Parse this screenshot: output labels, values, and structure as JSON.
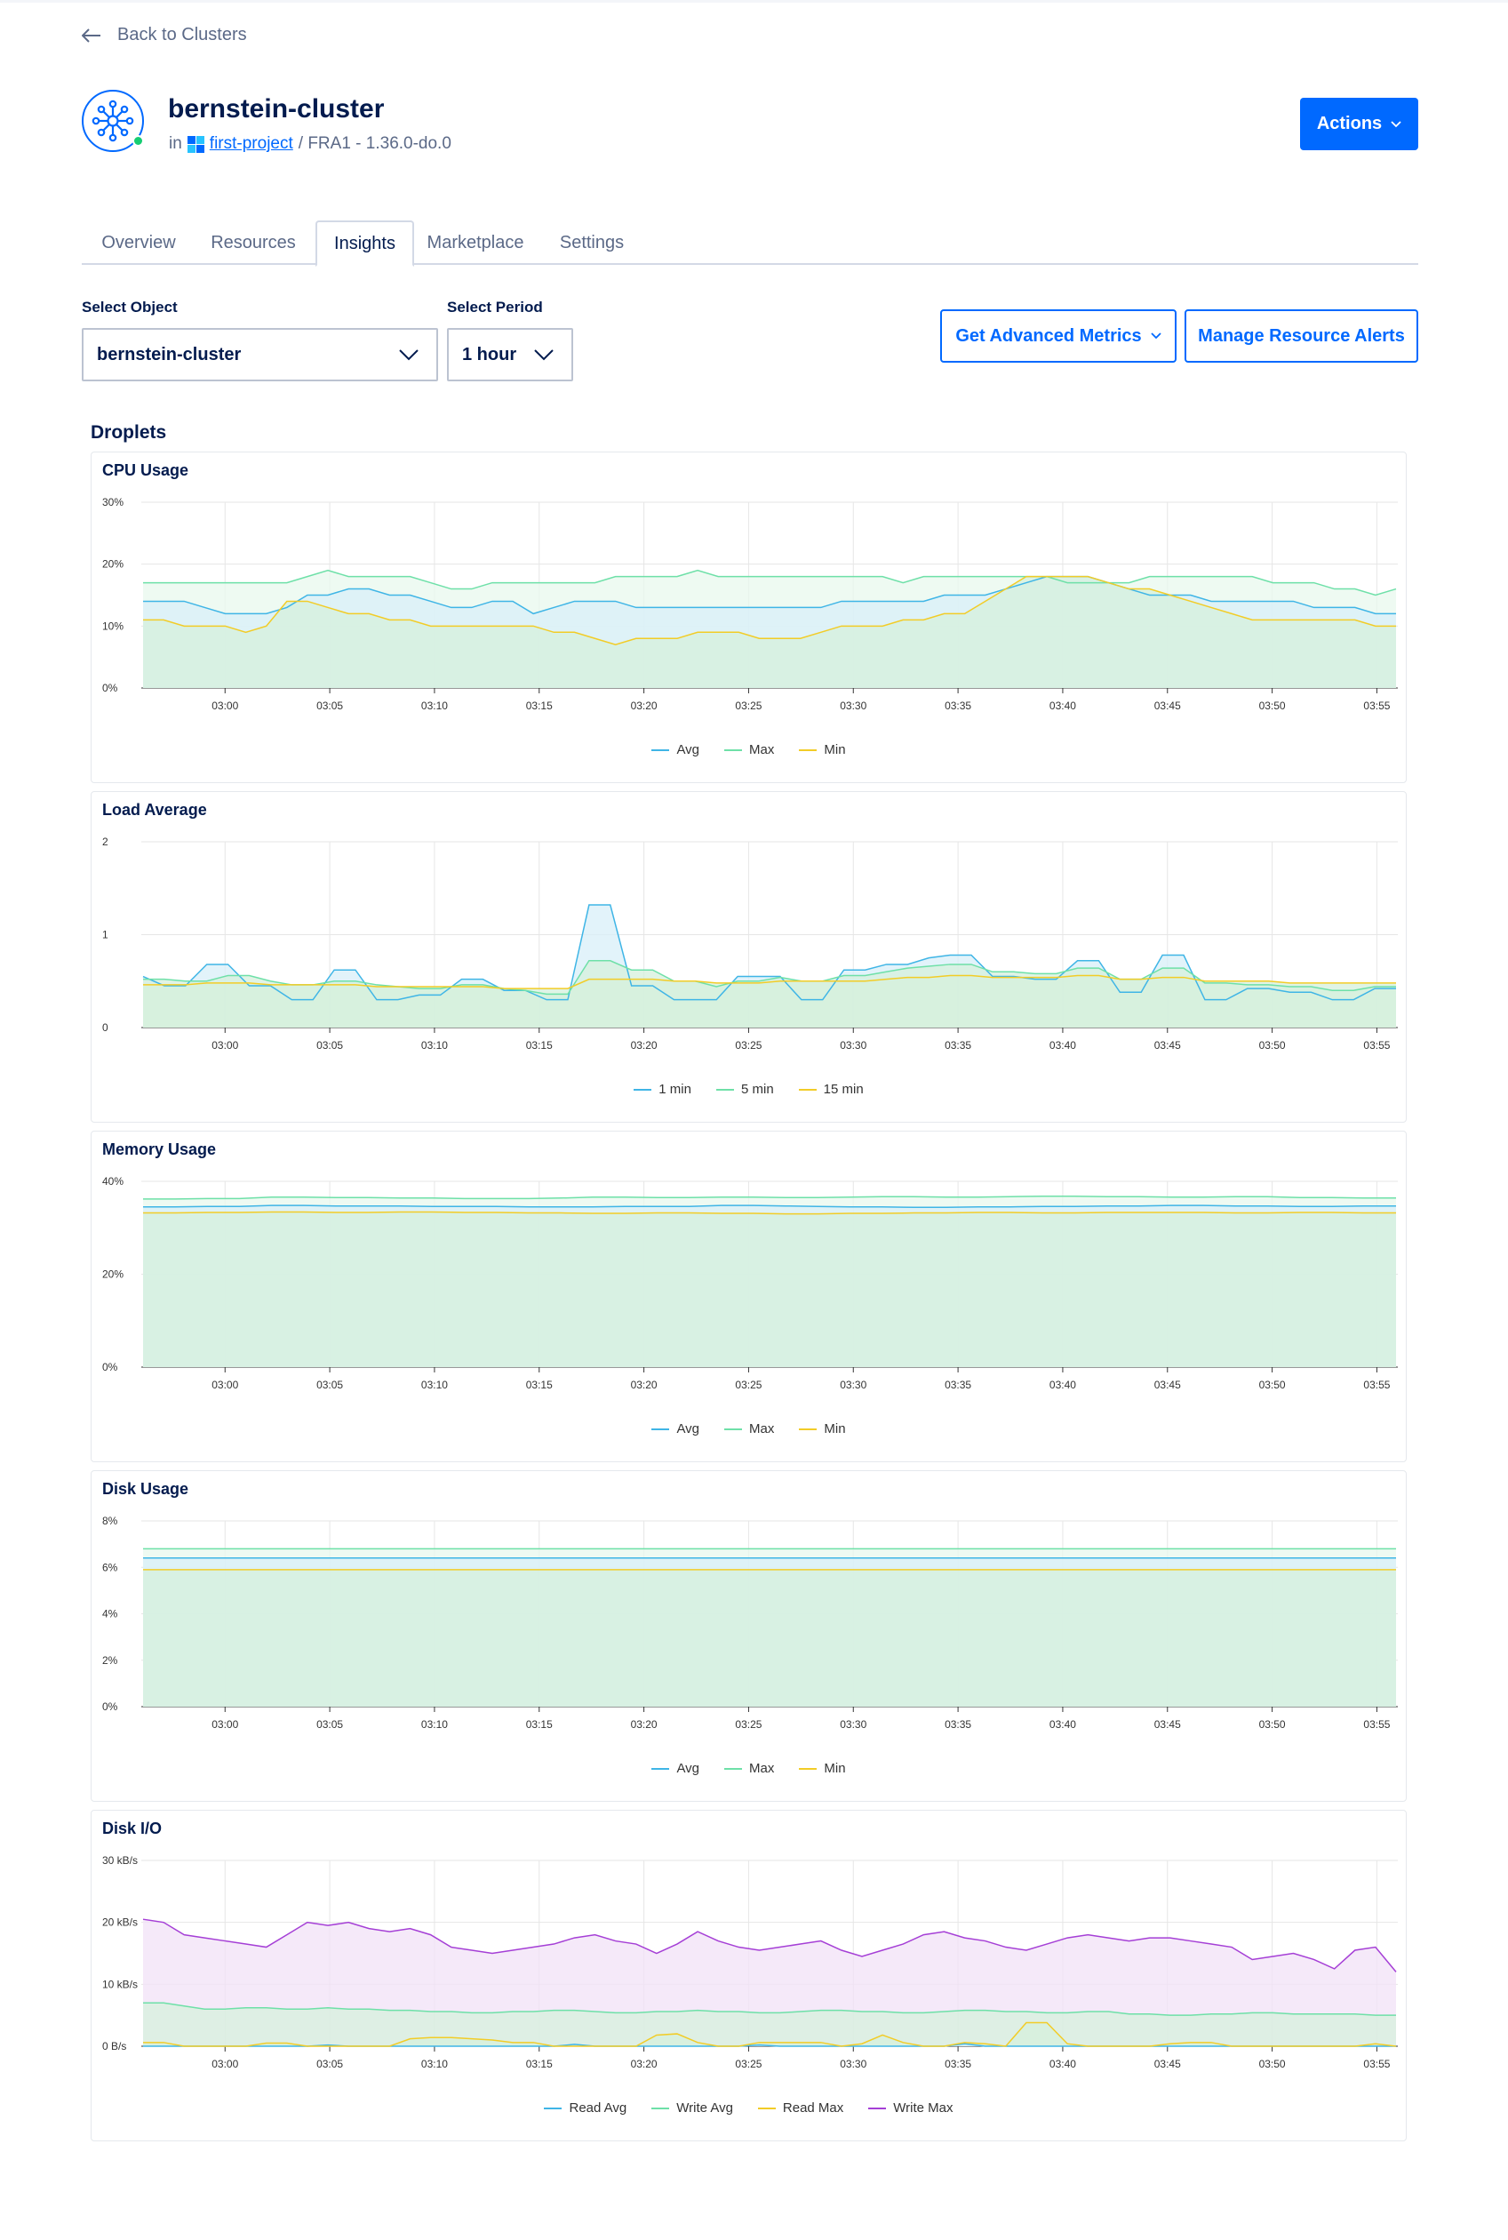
{
  "nav": {
    "back_label": "Back to Clusters"
  },
  "cluster": {
    "name": "bernstein-cluster",
    "in_label": "in",
    "project": "first-project",
    "region_version": "/ FRA1 - 1.36.0-do.0",
    "status_color": "#15cd72"
  },
  "header": {
    "actions_label": "Actions"
  },
  "tabs": [
    {
      "label": "Overview"
    },
    {
      "label": "Resources"
    },
    {
      "label": "Insights",
      "active": true
    },
    {
      "label": "Marketplace"
    },
    {
      "label": "Settings"
    }
  ],
  "filters": {
    "object_label": "Select Object",
    "object_value": "bernstein-cluster",
    "period_label": "Select Period",
    "period_value": "1 hour"
  },
  "buttons": {
    "advanced_metrics": "Get Advanced Metrics",
    "resource_alerts": "Manage Resource Alerts"
  },
  "section_title": "Droplets",
  "colors": {
    "accent": "#0069ff",
    "avg": "#3fb5e6",
    "max": "#6ee0a8",
    "min": "#f2cc27",
    "write_max": "#a53fd6",
    "fill_green": "#d6f0dc",
    "fill_blue": "#d8eff8",
    "fill_purple": "#f1e2f7"
  },
  "time_ticks": [
    "03:00",
    "03:05",
    "03:10",
    "03:15",
    "03:20",
    "03:25",
    "03:30",
    "03:35",
    "03:40",
    "03:45",
    "03:50",
    "03:55"
  ],
  "chart_data": [
    {
      "type": "area",
      "title": "CPU Usage",
      "y_ticks": [
        "30%",
        "20%",
        "10%",
        "0%"
      ],
      "ylim": [
        0,
        30
      ],
      "x_range": [
        "02:56",
        "03:56"
      ],
      "series": [
        {
          "name": "Avg",
          "color": "#3fb5e6",
          "values": [
            14,
            14,
            14,
            13,
            12,
            12,
            12,
            13,
            15,
            15,
            16,
            16,
            15,
            15,
            14,
            13,
            13,
            14,
            14,
            12,
            13,
            14,
            14,
            14,
            13,
            13,
            13,
            13,
            13,
            13,
            13,
            13,
            13,
            13,
            14,
            14,
            14,
            14,
            14,
            15,
            15,
            15,
            16,
            17,
            18,
            18,
            18,
            17,
            16,
            15,
            15,
            15,
            14,
            14,
            14,
            14,
            14,
            13,
            13,
            13,
            12,
            12
          ]
        },
        {
          "name": "Max",
          "color": "#6ee0a8",
          "values": [
            17,
            17,
            17,
            17,
            17,
            17,
            17,
            17,
            18,
            19,
            18,
            18,
            18,
            18,
            17,
            16,
            16,
            17,
            17,
            17,
            17,
            17,
            17,
            18,
            18,
            18,
            18,
            19,
            18,
            18,
            18,
            18,
            18,
            18,
            18,
            18,
            18,
            17,
            18,
            18,
            18,
            18,
            18,
            18,
            18,
            17,
            17,
            17,
            17,
            18,
            18,
            18,
            18,
            18,
            18,
            17,
            17,
            17,
            16,
            16,
            15,
            16
          ]
        },
        {
          "name": "Min",
          "color": "#f2cc27",
          "values": [
            11,
            11,
            10,
            10,
            10,
            9,
            10,
            14,
            14,
            13,
            12,
            12,
            11,
            11,
            10,
            10,
            10,
            10,
            10,
            10,
            9,
            9,
            8,
            7,
            8,
            8,
            8,
            9,
            9,
            9,
            8,
            8,
            8,
            9,
            10,
            10,
            10,
            11,
            11,
            12,
            12,
            14,
            16,
            18,
            18,
            18,
            18,
            17,
            16,
            16,
            15,
            14,
            13,
            12,
            11,
            11,
            11,
            11,
            11,
            11,
            10,
            10
          ]
        }
      ]
    },
    {
      "type": "area",
      "title": "Load Average",
      "y_ticks": [
        "2",
        "1",
        "0"
      ],
      "ylim": [
        0,
        2
      ],
      "x_range": [
        "02:56",
        "03:56"
      ],
      "series": [
        {
          "name": "1 min",
          "color": "#3fb5e6",
          "values": [
            0.55,
            0.45,
            0.45,
            0.68,
            0.68,
            0.45,
            0.45,
            0.3,
            0.3,
            0.62,
            0.62,
            0.3,
            0.3,
            0.35,
            0.35,
            0.52,
            0.52,
            0.4,
            0.4,
            0.3,
            0.3,
            1.32,
            1.32,
            0.45,
            0.45,
            0.3,
            0.3,
            0.3,
            0.55,
            0.55,
            0.55,
            0.3,
            0.3,
            0.62,
            0.62,
            0.68,
            0.68,
            0.75,
            0.78,
            0.78,
            0.55,
            0.55,
            0.52,
            0.52,
            0.72,
            0.72,
            0.38,
            0.38,
            0.78,
            0.78,
            0.3,
            0.3,
            0.42,
            0.42,
            0.38,
            0.38,
            0.3,
            0.3,
            0.42,
            0.42
          ]
        },
        {
          "name": "5 min",
          "color": "#6ee0a8",
          "values": [
            0.52,
            0.52,
            0.5,
            0.5,
            0.56,
            0.56,
            0.5,
            0.46,
            0.46,
            0.5,
            0.5,
            0.46,
            0.44,
            0.42,
            0.42,
            0.46,
            0.46,
            0.42,
            0.4,
            0.36,
            0.36,
            0.72,
            0.72,
            0.62,
            0.62,
            0.5,
            0.5,
            0.44,
            0.5,
            0.5,
            0.54,
            0.5,
            0.5,
            0.56,
            0.56,
            0.6,
            0.64,
            0.66,
            0.68,
            0.68,
            0.6,
            0.6,
            0.58,
            0.58,
            0.64,
            0.64,
            0.52,
            0.52,
            0.64,
            0.64,
            0.48,
            0.48,
            0.46,
            0.46,
            0.44,
            0.44,
            0.4,
            0.4,
            0.44,
            0.44
          ]
        },
        {
          "name": "15 min",
          "color": "#f2cc27",
          "values": [
            0.46,
            0.46,
            0.46,
            0.48,
            0.48,
            0.48,
            0.46,
            0.46,
            0.46,
            0.46,
            0.46,
            0.44,
            0.44,
            0.44,
            0.44,
            0.44,
            0.44,
            0.42,
            0.42,
            0.42,
            0.42,
            0.52,
            0.52,
            0.52,
            0.52,
            0.5,
            0.5,
            0.48,
            0.48,
            0.48,
            0.5,
            0.5,
            0.5,
            0.5,
            0.5,
            0.52,
            0.54,
            0.54,
            0.56,
            0.56,
            0.54,
            0.54,
            0.54,
            0.54,
            0.56,
            0.56,
            0.52,
            0.52,
            0.54,
            0.54,
            0.5,
            0.5,
            0.5,
            0.5,
            0.48,
            0.48,
            0.48,
            0.48,
            0.48,
            0.48
          ]
        }
      ]
    },
    {
      "type": "area",
      "title": "Memory Usage",
      "y_ticks": [
        "40%",
        "20%",
        "0%"
      ],
      "ylim": [
        0,
        40
      ],
      "x_range": [
        "02:56",
        "03:56"
      ],
      "series": [
        {
          "name": "Avg",
          "color": "#3fb5e6",
          "values": [
            34.5,
            34.5,
            34.6,
            34.6,
            34.8,
            34.8,
            34.7,
            34.7,
            34.7,
            34.6,
            34.6,
            34.6,
            34.5,
            34.5,
            34.5,
            34.6,
            34.6,
            34.6,
            34.8,
            34.8,
            34.7,
            34.6,
            34.5,
            34.5,
            34.4,
            34.4,
            34.5,
            34.5,
            34.6,
            34.6,
            34.7,
            34.7,
            34.8,
            34.8,
            34.7,
            34.7,
            34.6,
            34.6,
            34.7,
            34.7
          ]
        },
        {
          "name": "Max",
          "color": "#6ee0a8",
          "values": [
            36.2,
            36.2,
            36.3,
            36.3,
            36.6,
            36.6,
            36.5,
            36.5,
            36.4,
            36.4,
            36.3,
            36.3,
            36.3,
            36.4,
            36.6,
            36.6,
            36.5,
            36.5,
            36.6,
            36.6,
            36.5,
            36.5,
            36.6,
            36.7,
            36.7,
            36.6,
            36.6,
            36.7,
            36.8,
            36.8,
            36.7,
            36.7,
            36.6,
            36.6,
            36.7,
            36.7,
            36.5,
            36.5,
            36.4,
            36.4
          ]
        },
        {
          "name": "Min",
          "color": "#f2cc27",
          "values": [
            33.2,
            33.2,
            33.3,
            33.3,
            33.4,
            33.4,
            33.3,
            33.3,
            33.4,
            33.4,
            33.3,
            33.3,
            33.2,
            33.2,
            33.1,
            33.1,
            33.2,
            33.2,
            33.1,
            33.1,
            33.0,
            33.0,
            33.1,
            33.1,
            33.2,
            33.2,
            33.3,
            33.3,
            33.2,
            33.2,
            33.3,
            33.3,
            33.3,
            33.3,
            33.2,
            33.2,
            33.3,
            33.3,
            33.2,
            33.2
          ]
        }
      ]
    },
    {
      "type": "area",
      "title": "Disk Usage",
      "y_ticks": [
        "8%",
        "6%",
        "4%",
        "2%",
        "0%"
      ],
      "ylim": [
        0,
        8
      ],
      "x_range": [
        "02:56",
        "03:56"
      ],
      "series": [
        {
          "name": "Avg",
          "color": "#3fb5e6",
          "values": [
            6.4,
            6.4
          ]
        },
        {
          "name": "Max",
          "color": "#6ee0a8",
          "values": [
            6.8,
            6.8
          ]
        },
        {
          "name": "Min",
          "color": "#f2cc27",
          "values": [
            5.9,
            5.9
          ]
        }
      ]
    },
    {
      "type": "area",
      "title": "Disk I/O",
      "y_ticks": [
        "30 kB/s",
        "20 kB/s",
        "10 kB/s",
        "0 B/s"
      ],
      "ylim": [
        0,
        30
      ],
      "x_range": [
        "02:56",
        "03:56"
      ],
      "series": [
        {
          "name": "Read Avg",
          "color": "#3fb5e6",
          "values": [
            0,
            0,
            0,
            0,
            0,
            0,
            0,
            0,
            0,
            0.2,
            0,
            0,
            0,
            0,
            0,
            0,
            0,
            0,
            0,
            0,
            0,
            0.3,
            0,
            0,
            0,
            0,
            0,
            0,
            0,
            0,
            0.2,
            0,
            0,
            0,
            0,
            0,
            0,
            0,
            0,
            0,
            0.4,
            0,
            0,
            0,
            0,
            0,
            0,
            0,
            0,
            0,
            0,
            0,
            0,
            0,
            0,
            0,
            0,
            0,
            0,
            0,
            0,
            0
          ]
        },
        {
          "name": "Write Avg",
          "color": "#6ee0a8",
          "values": [
            7.0,
            7.0,
            6.5,
            6.0,
            6.0,
            6.2,
            6.2,
            6.0,
            6.0,
            6.2,
            6.0,
            6.0,
            5.8,
            5.8,
            5.6,
            5.6,
            5.4,
            5.4,
            5.6,
            5.6,
            5.8,
            5.8,
            5.6,
            5.4,
            5.4,
            5.6,
            5.6,
            5.8,
            5.6,
            5.6,
            5.4,
            5.4,
            5.6,
            5.8,
            5.8,
            5.6,
            5.6,
            5.4,
            5.4,
            5.6,
            5.8,
            5.8,
            5.6,
            5.6,
            5.4,
            5.4,
            5.6,
            5.6,
            5.2,
            5.2,
            5.0,
            5.0,
            5.2,
            5.2,
            5.4,
            5.4,
            5.2,
            5.2,
            5.2,
            5.2,
            5.0,
            5.0
          ]
        },
        {
          "name": "Read Max",
          "color": "#f2cc27",
          "values": [
            0.6,
            0.6,
            0,
            0,
            0,
            0,
            0.5,
            0.5,
            0,
            0,
            0,
            0,
            0,
            1.2,
            1.4,
            1.4,
            1.2,
            1.0,
            0.6,
            0.6,
            0,
            0,
            0,
            0,
            0,
            1.8,
            2.0,
            0.6,
            0,
            0,
            0.6,
            0.6,
            0.6,
            0.6,
            0,
            0.4,
            1.8,
            0.6,
            0,
            0,
            0.6,
            0.4,
            0,
            3.8,
            3.8,
            0.4,
            0,
            0,
            0,
            0,
            0.4,
            0.6,
            0.6,
            0,
            0,
            0,
            0,
            0,
            0,
            0,
            0.4,
            0
          ]
        },
        {
          "name": "Write Max",
          "color": "#a53fd6",
          "values": [
            20.5,
            20.0,
            18.0,
            17.5,
            17.0,
            16.5,
            16.0,
            18.0,
            20.0,
            19.5,
            20.0,
            19.0,
            18.5,
            19.0,
            18.0,
            16.0,
            15.5,
            15.0,
            15.5,
            16.0,
            16.5,
            17.5,
            18.0,
            17.0,
            16.5,
            15.0,
            16.5,
            18.5,
            17.0,
            16.0,
            15.5,
            16.0,
            16.5,
            17.0,
            15.5,
            14.5,
            15.5,
            16.5,
            18.0,
            18.5,
            17.5,
            17.0,
            16.0,
            15.5,
            16.5,
            17.5,
            18.0,
            17.5,
            17.0,
            17.5,
            17.5,
            17.0,
            16.5,
            16.0,
            14.0,
            14.5,
            15.0,
            14.0,
            12.5,
            15.5,
            16.0,
            12.0
          ]
        }
      ]
    }
  ]
}
